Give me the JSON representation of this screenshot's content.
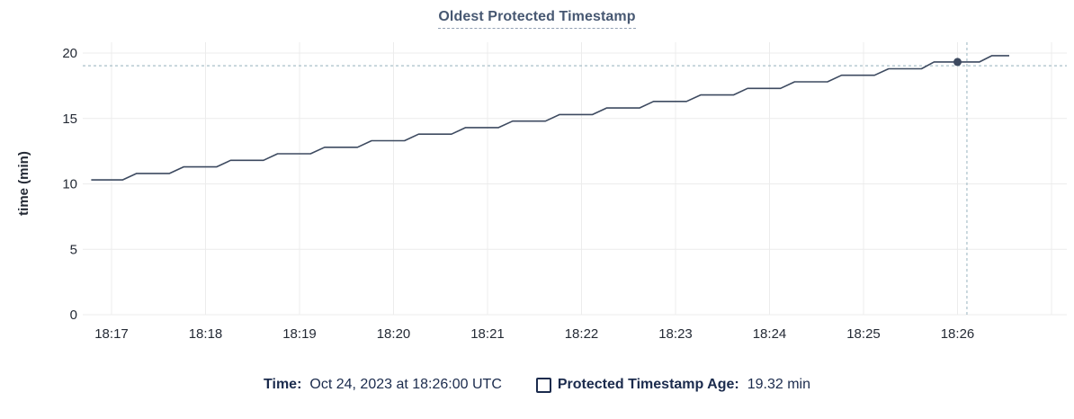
{
  "chart_data": {
    "type": "line",
    "title": "Oldest Protected Timestamp",
    "xlabel": "",
    "ylabel": "time (min)",
    "ylim": [
      0,
      20
    ],
    "y_ticks": [
      0,
      5,
      10,
      15,
      20
    ],
    "x_ticks": [
      "18:17",
      "18:18",
      "18:19",
      "18:20",
      "18:21",
      "18:22",
      "18:23",
      "18:24",
      "18:25",
      "18:26"
    ],
    "x_grid_extra": [
      "18:27"
    ],
    "x_window": [
      "18:16:44",
      "18:27:10"
    ],
    "grid": true,
    "legend_position": "bottom",
    "series": [
      {
        "name": "Protected Timestamp Age",
        "color": "#3d4a60",
        "points": [
          [
            "18:16:47",
            10.3
          ],
          [
            "18:17:07",
            10.3
          ],
          [
            "18:17:16",
            10.8
          ],
          [
            "18:17:37",
            10.8
          ],
          [
            "18:17:46",
            11.3
          ],
          [
            "18:18:07",
            11.3
          ],
          [
            "18:18:16",
            11.8
          ],
          [
            "18:18:37",
            11.8
          ],
          [
            "18:18:46",
            12.3
          ],
          [
            "18:19:07",
            12.3
          ],
          [
            "18:19:16",
            12.8
          ],
          [
            "18:19:37",
            12.8
          ],
          [
            "18:19:46",
            13.3
          ],
          [
            "18:20:07",
            13.3
          ],
          [
            "18:20:16",
            13.8
          ],
          [
            "18:20:37",
            13.8
          ],
          [
            "18:20:46",
            14.3
          ],
          [
            "18:21:07",
            14.3
          ],
          [
            "18:21:16",
            14.8
          ],
          [
            "18:21:37",
            14.8
          ],
          [
            "18:21:46",
            15.3
          ],
          [
            "18:22:07",
            15.3
          ],
          [
            "18:22:16",
            15.8
          ],
          [
            "18:22:37",
            15.8
          ],
          [
            "18:22:46",
            16.3
          ],
          [
            "18:23:07",
            16.3
          ],
          [
            "18:23:16",
            16.8
          ],
          [
            "18:23:37",
            16.8
          ],
          [
            "18:23:46",
            17.3
          ],
          [
            "18:24:07",
            17.3
          ],
          [
            "18:24:16",
            17.8
          ],
          [
            "18:24:37",
            17.8
          ],
          [
            "18:24:46",
            18.3
          ],
          [
            "18:25:07",
            18.3
          ],
          [
            "18:25:16",
            18.8
          ],
          [
            "18:25:37",
            18.8
          ],
          [
            "18:25:45",
            19.32
          ],
          [
            "18:26:00",
            19.32
          ],
          [
            "18:26:14",
            19.32
          ],
          [
            "18:26:22",
            19.8
          ],
          [
            "18:26:33",
            19.8
          ]
        ]
      }
    ],
    "cursor": {
      "point_time": "18:26:00",
      "point_value": 19.32,
      "crosshair_time": "18:26:06",
      "crosshair_value": 19.03
    }
  },
  "legend": {
    "time_label": "Time:",
    "time_value": "Oct 24, 2023 at 18:26:00 UTC",
    "series_label": "Protected Timestamp Age:",
    "series_value": "19.32 min"
  },
  "colors": {
    "series_line": "#3d4a60",
    "grid_line": "#ececec",
    "crosshair": "#a9bfc9",
    "axis_text": "#242a35",
    "title_text": "#475872",
    "title_underline": "#93a1b5",
    "legend_text": "#1b2b4d"
  }
}
